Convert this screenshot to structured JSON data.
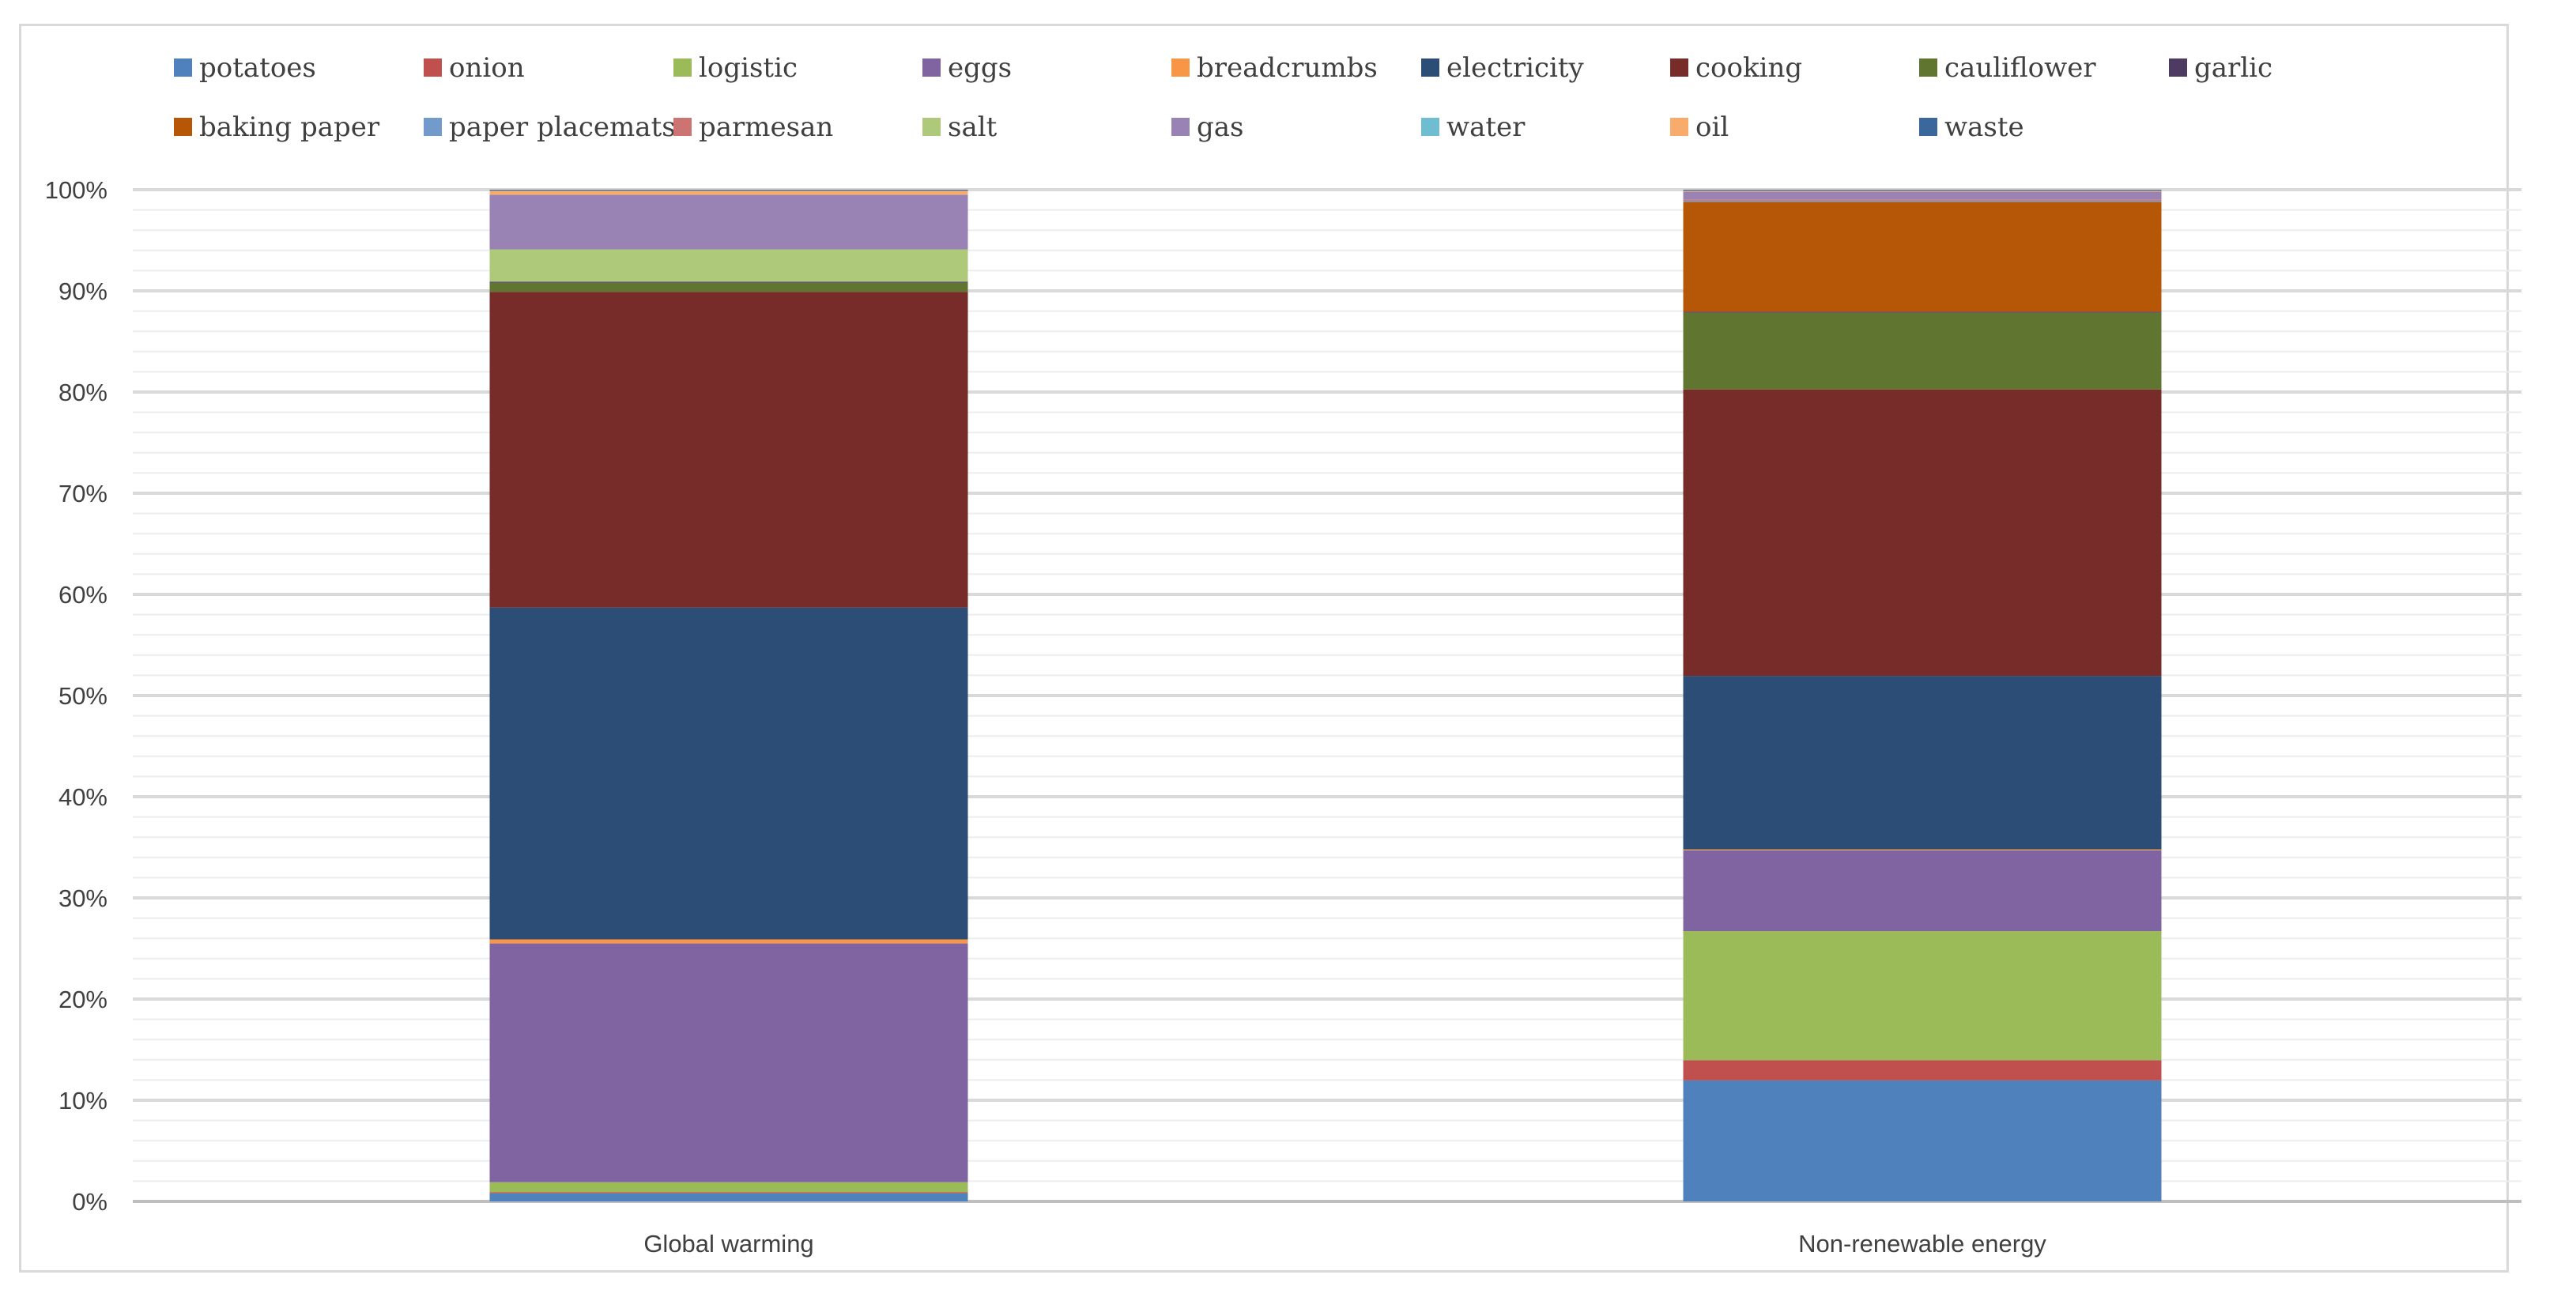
{
  "chart_data": {
    "type": "bar",
    "stacked": "percent",
    "title": "",
    "xlabel": "",
    "ylabel": "",
    "ylim": [
      0,
      100
    ],
    "y_ticks": [
      "0%",
      "10%",
      "20%",
      "30%",
      "40%",
      "50%",
      "60%",
      "70%",
      "80%",
      "90%",
      "100%"
    ],
    "grid": true,
    "legend_position": "top",
    "categories": [
      "Global warming",
      "Non-renewable energy"
    ],
    "series": [
      {
        "name": "potatoes",
        "color": "#4F81BD",
        "values": [
          0.8,
          12.0
        ]
      },
      {
        "name": "onion",
        "color": "#C0504D",
        "values": [
          0.1,
          2.0
        ]
      },
      {
        "name": "logistic",
        "color": "#9BBB59",
        "values": [
          1.0,
          12.8
        ]
      },
      {
        "name": "eggs",
        "color": "#8064A2",
        "values": [
          23.6,
          8.0
        ]
      },
      {
        "name": "breadcrumbs",
        "color": "#F79646",
        "values": [
          0.4,
          0.1
        ]
      },
      {
        "name": "electricity",
        "color": "#2C4D75",
        "values": [
          32.8,
          17.2
        ]
      },
      {
        "name": "cooking",
        "color": "#772C2A",
        "values": [
          31.2,
          28.4
        ]
      },
      {
        "name": "cauliflower",
        "color": "#5F7530",
        "values": [
          0.9,
          7.6
        ]
      },
      {
        "name": "garlic",
        "color": "#4D3B62",
        "values": [
          0.1,
          0.1
        ]
      },
      {
        "name": "baking paper",
        "color": "#B65708",
        "values": [
          0.0,
          10.9
        ]
      },
      {
        "name": "paper placemats",
        "color": "#729ACA",
        "values": [
          0.0,
          0.1
        ]
      },
      {
        "name": "parmesan",
        "color": "#CD7371",
        "values": [
          0.0,
          0.1
        ]
      },
      {
        "name": "salt",
        "color": "#AFC97A",
        "values": [
          3.2,
          0.0
        ]
      },
      {
        "name": "gas",
        "color": "#9983B5",
        "values": [
          5.4,
          0.8
        ]
      },
      {
        "name": "water",
        "color": "#6FBDD1",
        "values": [
          0.0,
          0.0
        ]
      },
      {
        "name": "oil",
        "color": "#F9AB6B",
        "values": [
          0.4,
          0.1
        ]
      },
      {
        "name": "waste",
        "color": "#3A679C",
        "values": [
          0.1,
          0.1
        ]
      }
    ]
  }
}
